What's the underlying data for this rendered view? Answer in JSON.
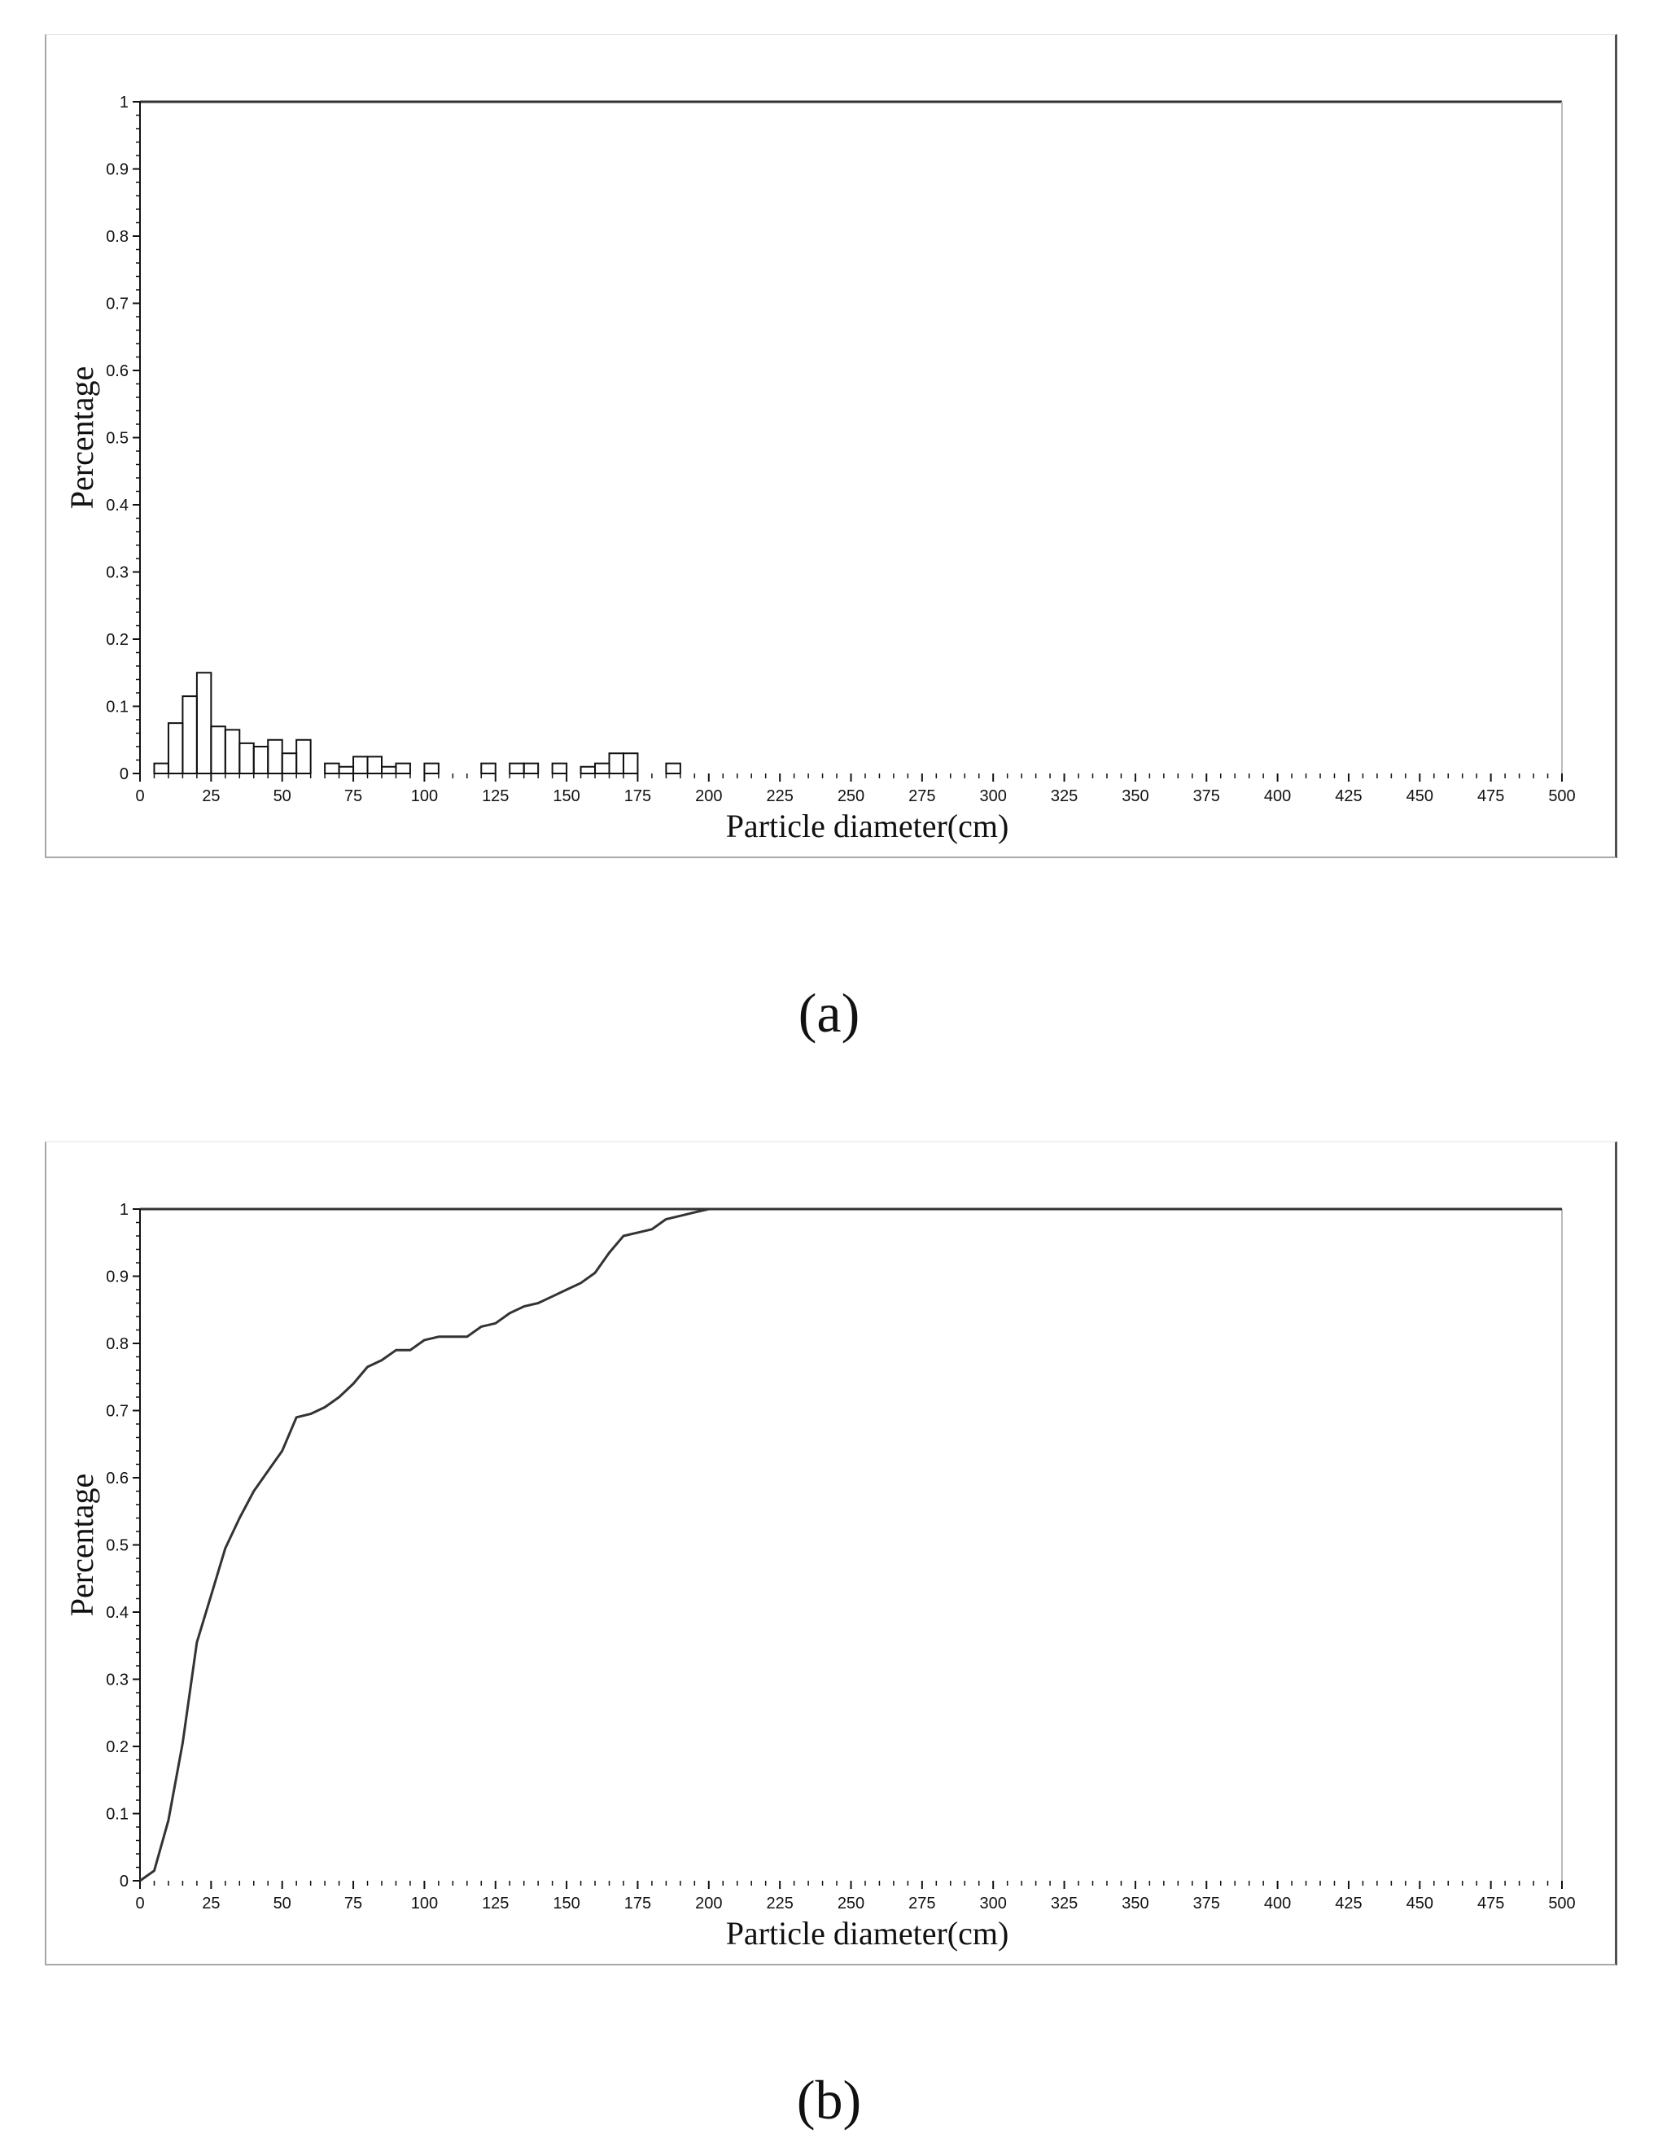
{
  "captions": {
    "a": "(a)",
    "b": "(b)"
  },
  "chart_data": [
    {
      "type": "bar",
      "xlabel": "Particle diameter(cm)",
      "ylabel": "Percentage",
      "xlim": [
        0,
        500
      ],
      "ylim": [
        0,
        1
      ],
      "x_ticks": [
        "0",
        "25",
        "50",
        "75",
        "100",
        "125",
        "150",
        "175",
        "200",
        "225",
        "250",
        "275",
        "300",
        "325",
        "350",
        "375",
        "400",
        "425",
        "450",
        "475",
        "500"
      ],
      "y_ticks": [
        "0",
        "0.1",
        "0.2",
        "0.3",
        "0.4",
        "0.5",
        "0.6",
        "0.7",
        "0.8",
        "0.9",
        "1"
      ],
      "bin_width": 5,
      "bins": [
        {
          "x0": 5,
          "value": 0.015
        },
        {
          "x0": 10,
          "value": 0.075
        },
        {
          "x0": 15,
          "value": 0.115
        },
        {
          "x0": 20,
          "value": 0.15
        },
        {
          "x0": 25,
          "value": 0.07
        },
        {
          "x0": 30,
          "value": 0.065
        },
        {
          "x0": 35,
          "value": 0.045
        },
        {
          "x0": 40,
          "value": 0.04
        },
        {
          "x0": 45,
          "value": 0.05
        },
        {
          "x0": 50,
          "value": 0.03
        },
        {
          "x0": 55,
          "value": 0.05
        },
        {
          "x0": 65,
          "value": 0.015
        },
        {
          "x0": 70,
          "value": 0.01
        },
        {
          "x0": 75,
          "value": 0.025
        },
        {
          "x0": 80,
          "value": 0.025
        },
        {
          "x0": 85,
          "value": 0.01
        },
        {
          "x0": 90,
          "value": 0.015
        },
        {
          "x0": 100,
          "value": 0.015
        },
        {
          "x0": 120,
          "value": 0.015
        },
        {
          "x0": 130,
          "value": 0.015
        },
        {
          "x0": 135,
          "value": 0.015
        },
        {
          "x0": 145,
          "value": 0.015
        },
        {
          "x0": 155,
          "value": 0.01
        },
        {
          "x0": 160,
          "value": 0.015
        },
        {
          "x0": 165,
          "value": 0.03
        },
        {
          "x0": 170,
          "value": 0.03
        },
        {
          "x0": 185,
          "value": 0.015
        }
      ]
    },
    {
      "type": "line",
      "xlabel": "Particle diameter(cm)",
      "ylabel": "Percentage",
      "xlim": [
        0,
        500
      ],
      "ylim": [
        0,
        1
      ],
      "x_ticks": [
        "0",
        "25",
        "50",
        "75",
        "100",
        "125",
        "150",
        "175",
        "200",
        "225",
        "250",
        "275",
        "300",
        "325",
        "350",
        "375",
        "400",
        "425",
        "450",
        "475",
        "500"
      ],
      "y_ticks": [
        "0",
        "0.1",
        "0.2",
        "0.3",
        "0.4",
        "0.5",
        "0.6",
        "0.7",
        "0.8",
        "0.9",
        "1"
      ],
      "series": [
        {
          "x": [
            0,
            5,
            10,
            15,
            20,
            25,
            30,
            35,
            40,
            45,
            50,
            55,
            60,
            65,
            70,
            75,
            80,
            85,
            90,
            95,
            100,
            105,
            110,
            115,
            120,
            125,
            130,
            135,
            140,
            145,
            150,
            155,
            160,
            165,
            170,
            175,
            180,
            185,
            190,
            195,
            200,
            500
          ],
          "y": [
            0,
            0.015,
            0.09,
            0.205,
            0.355,
            0.425,
            0.495,
            0.54,
            0.58,
            0.61,
            0.64,
            0.69,
            0.695,
            0.705,
            0.72,
            0.74,
            0.765,
            0.775,
            0.79,
            0.79,
            0.805,
            0.81,
            0.81,
            0.81,
            0.825,
            0.83,
            0.845,
            0.855,
            0.86,
            0.87,
            0.88,
            0.89,
            0.905,
            0.935,
            0.96,
            0.965,
            0.97,
            0.985,
            0.99,
            0.995,
            1.0,
            1.0
          ]
        }
      ]
    }
  ]
}
